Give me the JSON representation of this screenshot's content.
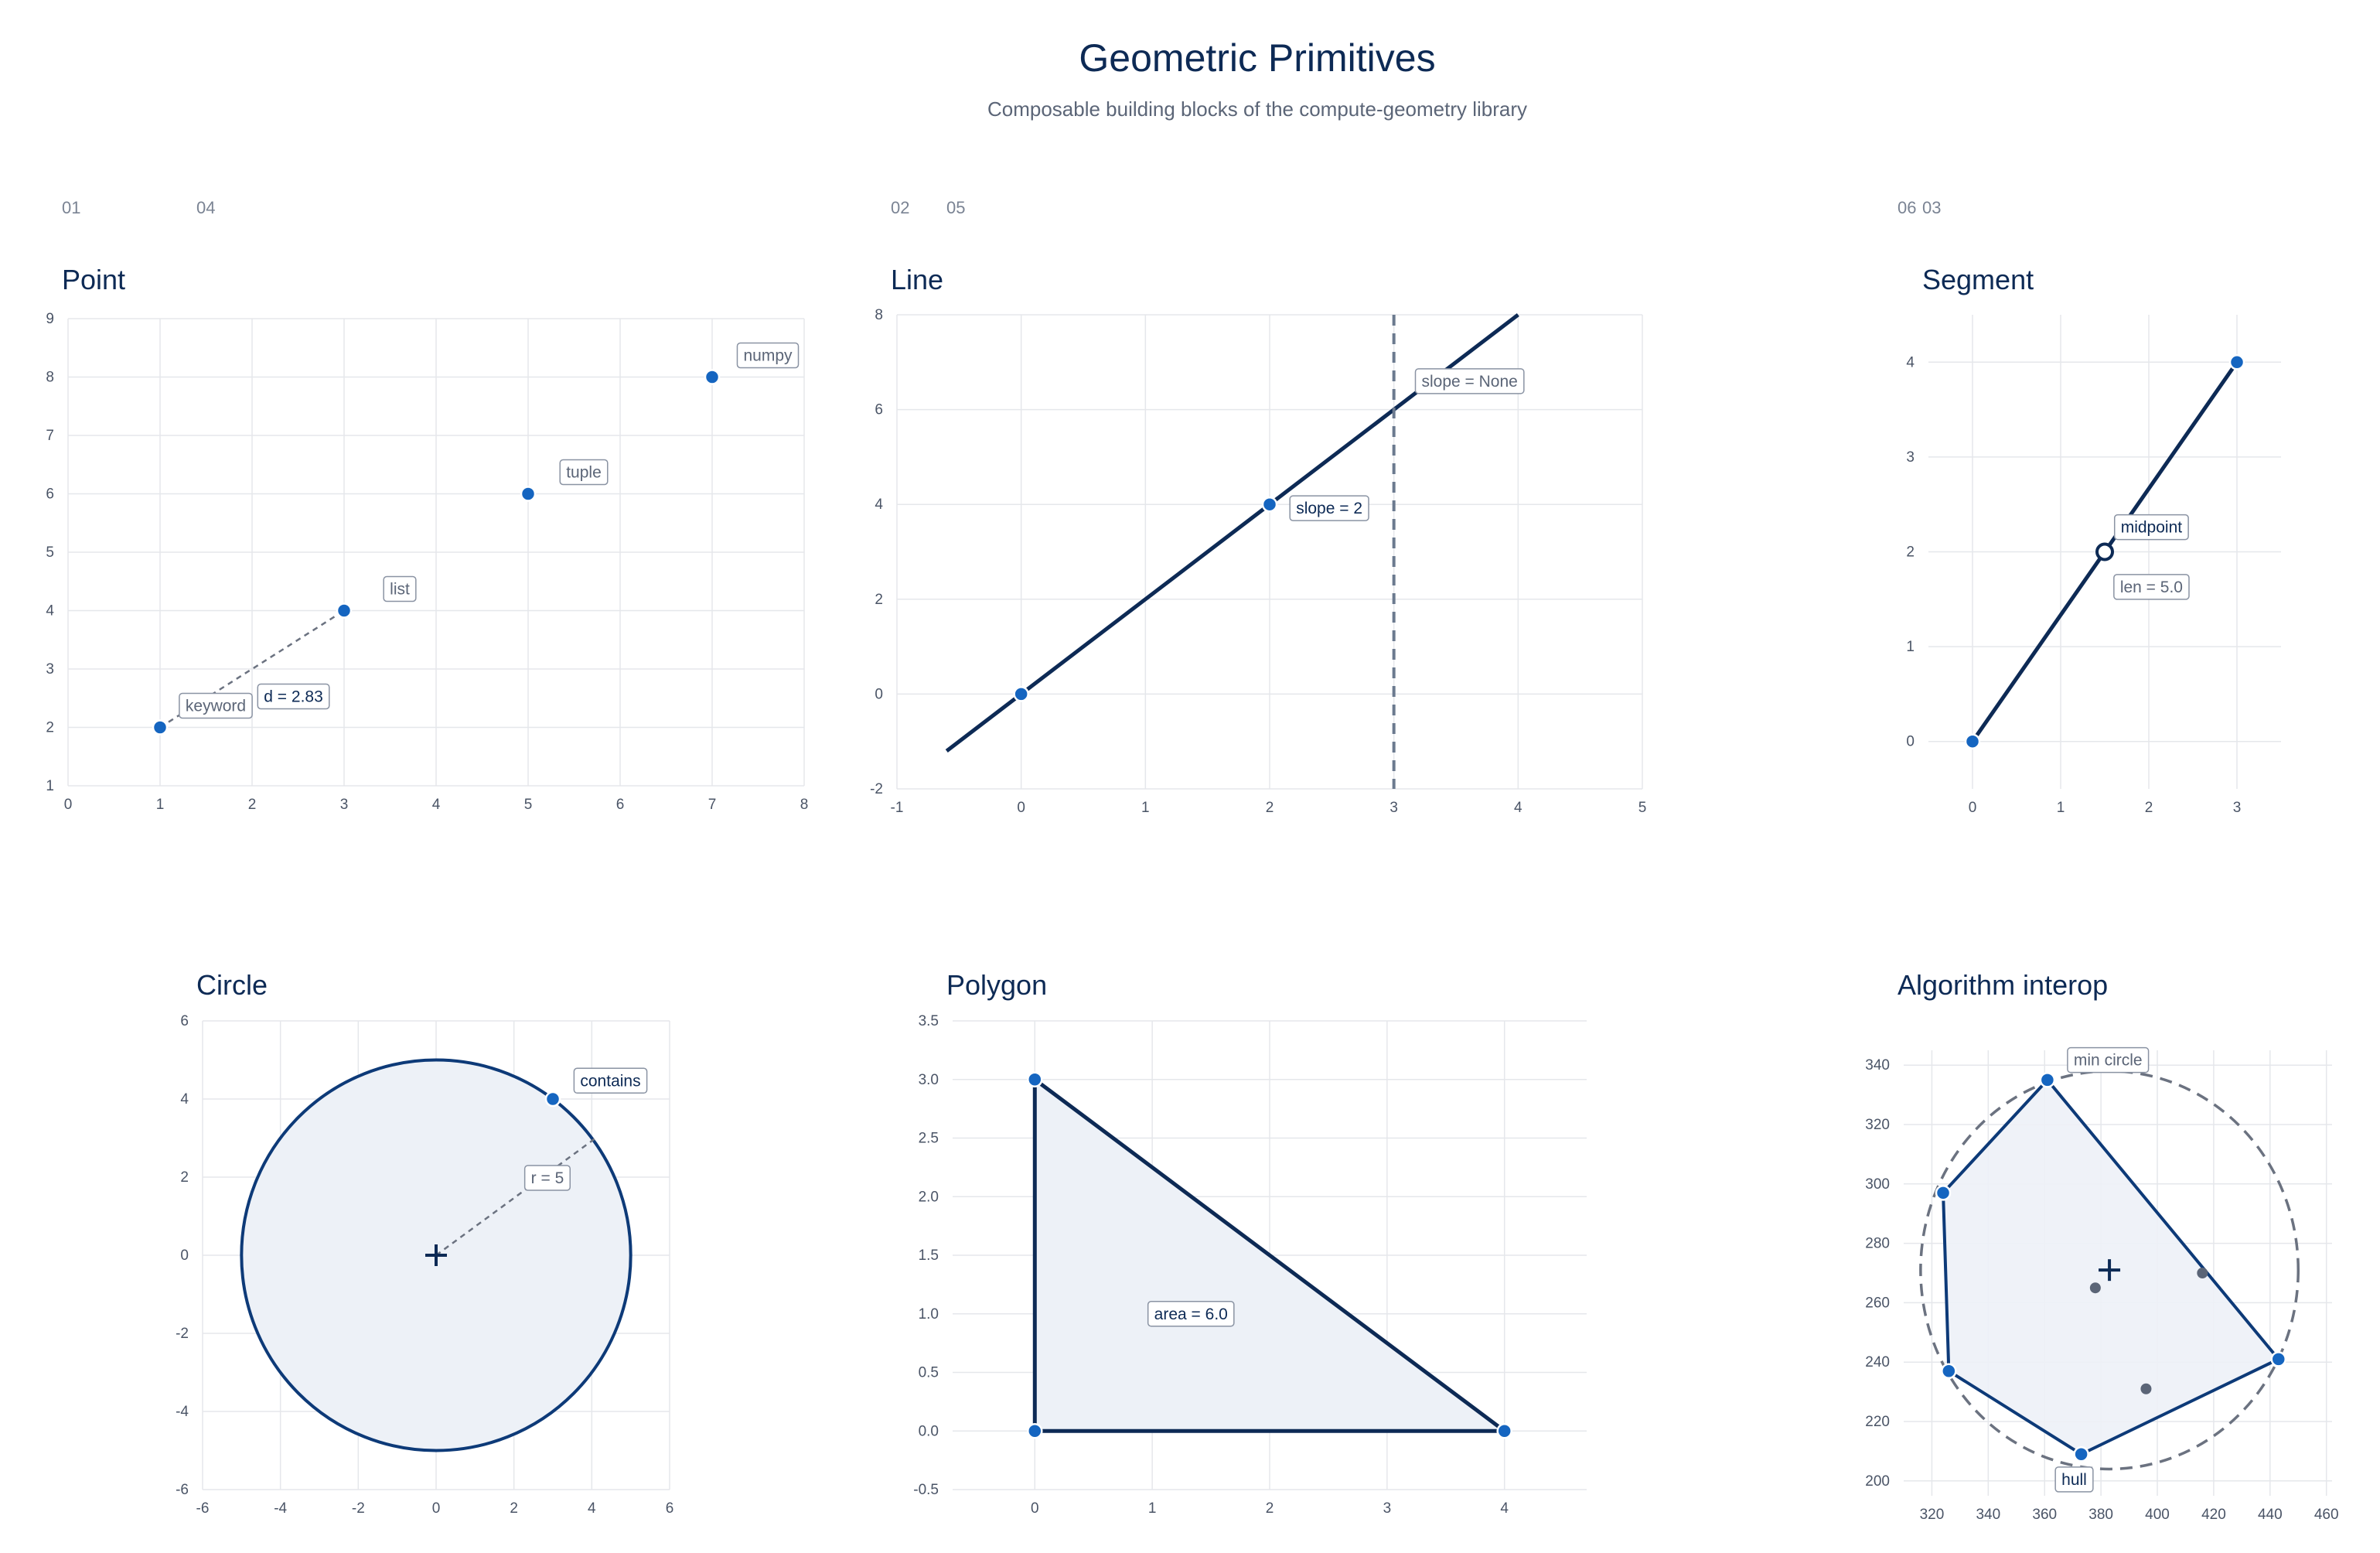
{
  "header": {
    "title": "Geometric Primitives",
    "subtitle": "Composable building blocks of the compute-geometry library"
  },
  "colors": {
    "navy": "#0d2a55",
    "accent": "#1565c0",
    "gray_dash": "#6b7280",
    "grid": "#e5e7eb",
    "fill": "#edf1f7",
    "label_gray": "#5b6577"
  },
  "chart_data": [
    {
      "id": "point",
      "type": "scatter",
      "number": "01",
      "title": "Point",
      "xlim": [
        0,
        8
      ],
      "ylim": [
        1,
        9
      ],
      "xticks": [
        0,
        1,
        2,
        3,
        4,
        5,
        6,
        7,
        8
      ],
      "yticks": [
        1,
        2,
        3,
        4,
        5,
        6,
        7,
        8,
        9
      ],
      "points": [
        {
          "x": 1,
          "y": 2,
          "label": "keyword"
        },
        {
          "x": 3,
          "y": 4,
          "label": "list"
        },
        {
          "x": 5,
          "y": 6,
          "label": "tuple"
        },
        {
          "x": 7,
          "y": 8,
          "label": "numpy"
        }
      ],
      "distance": {
        "from": [
          1,
          2
        ],
        "to": [
          3,
          4
        ],
        "label": "d = 2.83"
      }
    },
    {
      "id": "line",
      "type": "line",
      "number": "02",
      "title": "Line",
      "xlim": [
        -1,
        5
      ],
      "ylim": [
        -2,
        8
      ],
      "xticks": [
        -1,
        0,
        1,
        2,
        3,
        4,
        5
      ],
      "yticks": [
        -2,
        0,
        2,
        4,
        6,
        8
      ],
      "line": {
        "x": [
          -0.6,
          4
        ],
        "y": [
          -1.2,
          8
        ]
      },
      "points": [
        {
          "x": 0,
          "y": 0
        },
        {
          "x": 2,
          "y": 4,
          "label": "slope = 2"
        }
      ],
      "vertical": {
        "x": 3,
        "label": "slope = None"
      }
    },
    {
      "id": "segment",
      "type": "line",
      "number": "03",
      "title": "Segment",
      "xlim": [
        -0.5,
        3.5
      ],
      "ylim": [
        -0.5,
        4.5
      ],
      "xticks": [
        0,
        1,
        2,
        3
      ],
      "yticks": [
        0,
        1,
        2,
        3,
        4
      ],
      "segment": {
        "from": [
          0,
          0
        ],
        "to": [
          3,
          4
        ]
      },
      "midpoint": {
        "x": 1.5,
        "y": 2,
        "label": "midpoint"
      },
      "length_label": "len = 5.0"
    },
    {
      "id": "circle",
      "type": "scatter",
      "number": "04",
      "title": "Circle",
      "xlim": [
        -6,
        6
      ],
      "ylim": [
        -6,
        6
      ],
      "xticks": [
        -6,
        -4,
        -2,
        0,
        2,
        4,
        6
      ],
      "yticks": [
        -6,
        -4,
        -2,
        0,
        2,
        4,
        6
      ],
      "center": [
        0,
        0
      ],
      "radius": 5,
      "radius_label": "r = 5",
      "point": {
        "x": 3,
        "y": 4,
        "label": "contains"
      }
    },
    {
      "id": "polygon",
      "type": "area",
      "number": "05",
      "title": "Polygon",
      "xlim": [
        -0.7,
        4.7
      ],
      "ylim": [
        -0.5,
        3.5
      ],
      "xticks": [
        0,
        1,
        2,
        3,
        4
      ],
      "yticks": [
        -0.5,
        0.0,
        0.5,
        1.0,
        1.5,
        2.0,
        2.5,
        3.0,
        3.5
      ],
      "ytick_labels": [
        "-0.5",
        "0.0",
        "0.5",
        "1.0",
        "1.5",
        "2.0",
        "2.5",
        "3.0",
        "3.5"
      ],
      "vertices": [
        [
          0,
          0
        ],
        [
          4,
          0
        ],
        [
          0,
          3
        ]
      ],
      "area_label": "area = 6.0",
      "area_label_pos": [
        1.33,
        1.0
      ]
    },
    {
      "id": "interop",
      "type": "scatter",
      "number": "06",
      "title": "Algorithm interop",
      "xlim": [
        310,
        462
      ],
      "ylim": [
        195,
        345
      ],
      "xticks": [
        320,
        340,
        360,
        380,
        400,
        420,
        440,
        460
      ],
      "yticks": [
        200,
        220,
        240,
        260,
        280,
        300,
        320,
        340
      ],
      "hull": [
        [
          361,
          335
        ],
        [
          443,
          241
        ],
        [
          373,
          209
        ],
        [
          326,
          237
        ],
        [
          324,
          297
        ]
      ],
      "interior": [
        [
          378,
          265
        ],
        [
          396,
          231
        ],
        [
          416,
          270
        ]
      ],
      "min_circle": {
        "center": [
          383,
          271
        ],
        "radius": 67
      },
      "hull_label": "hull",
      "circle_label": "min circle"
    }
  ]
}
